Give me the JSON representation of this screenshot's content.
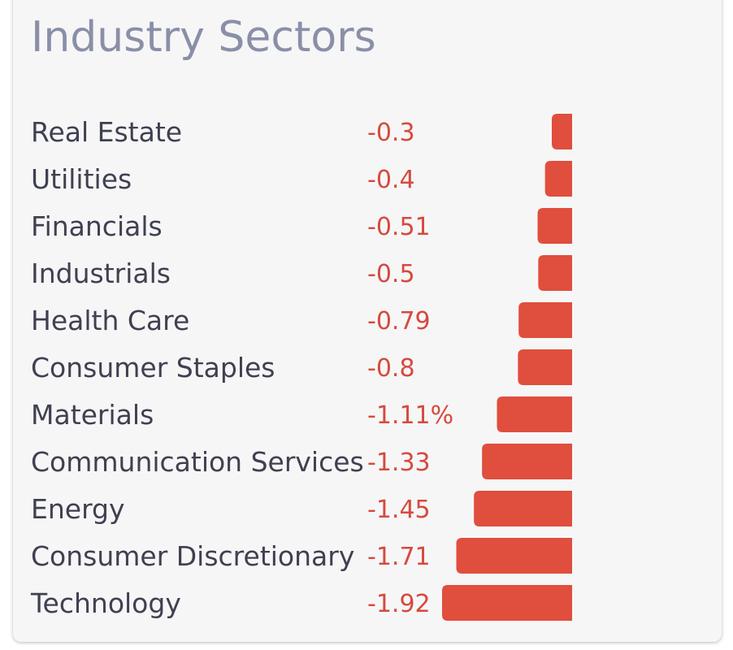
{
  "title": "Industry Sectors",
  "colors": {
    "bar": "#e04e3d",
    "value_text": "#d64a3d",
    "label_text": "#3f4050",
    "title_text": "#8a8fa8",
    "card_background": "#f6f6f7"
  },
  "chart_data": {
    "type": "bar",
    "orientation": "horizontal",
    "title": "Industry Sectors",
    "categories": [
      "Real Estate",
      "Utilities",
      "Financials",
      "Industrials",
      "Health Care",
      "Consumer Staples",
      "Materials",
      "Communication Services",
      "Energy",
      "Consumer Discretionary",
      "Technology"
    ],
    "values": [
      -0.3,
      -0.4,
      -0.51,
      -0.5,
      -0.79,
      -0.8,
      -1.11,
      -1.33,
      -1.45,
      -1.71,
      -1.92
    ],
    "value_labels": [
      "-0.3",
      "-0.4",
      "-0.51",
      "-0.5",
      "-0.79",
      "-0.8",
      "-1.11%",
      "-1.33",
      "-1.45",
      "-1.71",
      "-1.92"
    ],
    "xlabel": "",
    "ylabel": "",
    "xlim": [
      -1.92,
      0
    ],
    "grid": false,
    "legend": "none"
  }
}
